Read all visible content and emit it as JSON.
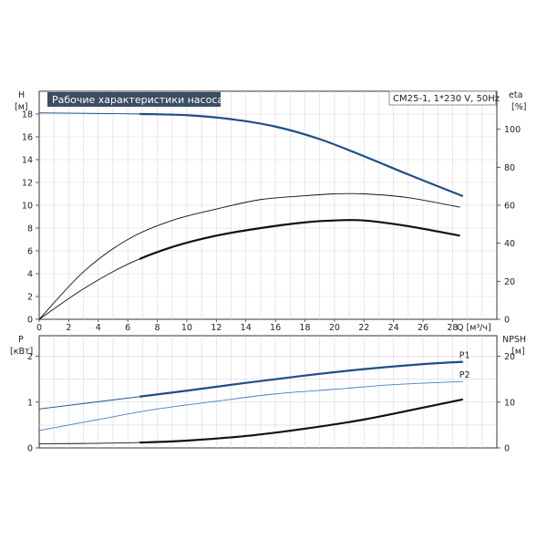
{
  "chart_data": [
    {
      "type": "line",
      "title": "Рабочие характеристики насоса",
      "model_label": "CM25-1, 1*230 V, 50Hz",
      "left_axis": {
        "label": "H",
        "unit": "[м]",
        "ylim": [
          0,
          20
        ],
        "ticks": [
          0,
          2,
          4,
          6,
          8,
          10,
          12,
          14,
          16,
          18
        ]
      },
      "right_axis": {
        "label": "eta",
        "unit": "[%]",
        "ylim": [
          0,
          120
        ],
        "ticks": [
          0,
          20,
          40,
          60,
          80,
          100
        ]
      },
      "x_axis": {
        "label": "Q [м³/ч]",
        "xlim": [
          0,
          31
        ],
        "ticks": [
          0,
          2,
          4,
          6,
          8,
          10,
          12,
          14,
          16,
          18,
          20,
          22,
          24,
          26,
          28
        ]
      },
      "grid": true,
      "series": [
        {
          "id": "H",
          "axis": "left",
          "color": "#1f4e86",
          "x": [
            0,
            4,
            7,
            10,
            13,
            16,
            19,
            22,
            25,
            28.7
          ],
          "y": [
            18.1,
            18.05,
            18.0,
            17.9,
            17.55,
            16.9,
            15.8,
            14.3,
            12.7,
            10.8
          ]
        },
        {
          "id": "eta1",
          "axis": "right",
          "color": "#111111",
          "x": [
            0,
            3,
            6,
            9,
            12,
            15,
            18,
            20,
            22,
            25,
            28.5
          ],
          "y": [
            0,
            16,
            29,
            38,
            44,
            48,
            51,
            52,
            52,
            49,
            44
          ]
        },
        {
          "id": "eta2",
          "axis": "right",
          "color": "#111111",
          "x": [
            0,
            3,
            6,
            9,
            12,
            15,
            18,
            20,
            22,
            25,
            28.5
          ],
          "y": [
            0,
            25,
            42,
            52,
            58,
            63,
            65,
            66,
            66,
            64,
            59
          ]
        }
      ]
    },
    {
      "type": "line",
      "left_axis": {
        "label": "P",
        "unit": "[кВт]",
        "ylim": [
          0,
          2.45
        ],
        "ticks": [
          0,
          1,
          2
        ]
      },
      "right_axis": {
        "label": "NPSH",
        "unit": "[м]",
        "ylim": [
          0,
          24.5
        ],
        "ticks": [
          0,
          10,
          20
        ]
      },
      "x_axis": {
        "xlim": [
          0,
          31
        ]
      },
      "grid": true,
      "series": [
        {
          "id": "P1",
          "name": "P1",
          "axis": "left",
          "color": "#1f4e86",
          "x": [
            0,
            6.8,
            10,
            14,
            18,
            22,
            26,
            28.7
          ],
          "y": [
            0.85,
            1.12,
            1.25,
            1.42,
            1.58,
            1.72,
            1.83,
            1.88
          ]
        },
        {
          "id": "P2",
          "name": "P2",
          "axis": "left",
          "color": "#4a7fc4",
          "x": [
            0,
            4,
            8,
            12,
            16,
            20,
            24,
            28.7
          ],
          "y": [
            0.38,
            0.62,
            0.85,
            1.02,
            1.18,
            1.28,
            1.38,
            1.45
          ]
        },
        {
          "id": "NPSH",
          "axis": "right",
          "color": "#111111",
          "x": [
            0,
            4,
            7,
            10,
            14,
            18,
            22,
            26,
            28.7
          ],
          "y": [
            0.9,
            1.0,
            1.2,
            1.6,
            2.6,
            4.2,
            6.2,
            8.8,
            10.6
          ]
        }
      ]
    }
  ]
}
